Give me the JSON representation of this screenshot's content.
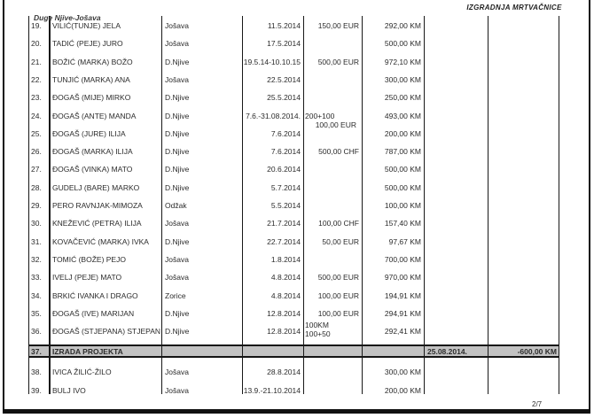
{
  "header": {
    "title": "IZGRADNJA MRTVAČNICE"
  },
  "overlay_note": "Duge Njive-Jošava",
  "footer": {
    "page": "2/7"
  },
  "colors": {
    "row_highlight": "#c2c2c2",
    "ink": "#2b2b2b",
    "border": "#141414"
  },
  "table": {
    "rows": [
      {
        "no": "19.",
        "name": "VILIĆ(TUNJE) JELA",
        "place": "Jošava",
        "date": "11.5.2014",
        "foreign": "150,00 EUR",
        "km": "292,00 KM",
        "col7": "",
        "col8": ""
      },
      {
        "no": "20.",
        "name": "TADIĆ (PEJE) JURO",
        "place": "Jošava",
        "date": "17.5.2014",
        "foreign": "",
        "km": "500,00 KM",
        "col7": "",
        "col8": ""
      },
      {
        "no": "21.",
        "name": "BOŽIĆ (MARKA) BOŽO",
        "place": "D.Njive",
        "date": "19.5.14-10.10.15",
        "foreign": "500,00 EUR",
        "km": "972,10 KM",
        "col7": "",
        "col8": ""
      },
      {
        "no": "22.",
        "name": "TUNJIĆ (MARKA) ANA",
        "place": "Jošava",
        "date": "22.5.2014",
        "foreign": "",
        "km": "300,00 KM",
        "col7": "",
        "col8": ""
      },
      {
        "no": "23.",
        "name": "ĐOGAŠ (MIJE) MIRKO",
        "place": "D.Njive",
        "date": "25.5.2014",
        "foreign": "",
        "km": "250,00 KM",
        "col7": "",
        "col8": ""
      },
      {
        "no": "24.",
        "name": "ĐOGAŠ (ANTE) MANDA",
        "place": "D.Njive",
        "date": "7.6.-31.08.2014.",
        "foreign_lines": [
          {
            "text": "200+100",
            "align": "left"
          },
          {
            "text": "100,00 EUR",
            "align": "right"
          }
        ],
        "km": "493,00 KM",
        "col7": "",
        "col8": ""
      },
      {
        "no": "25.",
        "name": "ĐOGAŠ (JURE) ILIJA",
        "place": "D.Njive",
        "date": "7.6.2014",
        "foreign": "",
        "km": "200,00 KM",
        "col7": "",
        "col8": ""
      },
      {
        "no": "26.",
        "name": "ĐOGAŠ (MARKA) ILIJA",
        "place": "D.Njive",
        "date": "7.6.2014",
        "foreign": "500,00 CHF",
        "km": "787,00 KM",
        "col7": "",
        "col8": ""
      },
      {
        "no": "27.",
        "name": "ĐOGAŠ (VINKA) MATO",
        "place": "D.Njive",
        "date": "20.6.2014",
        "foreign": "",
        "km": "500,00 KM",
        "col7": "",
        "col8": ""
      },
      {
        "no": "28.",
        "name": "GUDELJ (BARE) MARKO",
        "place": "D.Njive",
        "date": "5.7.2014",
        "foreign": "",
        "km": "500,00 KM",
        "col7": "",
        "col8": ""
      },
      {
        "no": "29.",
        "name": "PERO RAVNJAK-MIMOZA",
        "place": "Odžak",
        "date": "5.5.2014",
        "foreign": "",
        "km": "100,00 KM",
        "col7": "",
        "col8": ""
      },
      {
        "no": "30.",
        "name": "KNEŽEVIĆ (PETRA) ILIJA",
        "place": "Jošava",
        "date": "21.7.2014",
        "foreign": "100,00 CHF",
        "km": "157,40 KM",
        "col7": "",
        "col8": ""
      },
      {
        "no": "31.",
        "name": "KOVAČEVIĆ (MARKA) IVKA",
        "place": "D.Njive",
        "date": "22.7.2014",
        "foreign": "50,00 EUR",
        "km": "97,67 KM",
        "col7": "",
        "col8": ""
      },
      {
        "no": "32.",
        "name": "TOMIĆ (BOŽE) PEJO",
        "place": "Jošava",
        "date": "1.8.2014",
        "foreign": "",
        "km": "700,00 KM",
        "col7": "",
        "col8": ""
      },
      {
        "no": "33.",
        "name": "IVELJ (PEJE) MATO",
        "place": "Jošava",
        "date": "4.8.2014",
        "foreign": "500,00 EUR",
        "km": "970,00 KM",
        "col7": "",
        "col8": ""
      },
      {
        "no": "34.",
        "name": "BRKIĆ IVANKA I DRAGO",
        "place": "Zorice",
        "date": "4.8.2014",
        "foreign": "100,00 EUR",
        "km": "194,91 KM",
        "col7": "",
        "col8": ""
      },
      {
        "no": "35.",
        "name": "ĐOGAŠ (IVE) MARIJAN",
        "place": "D.Njive",
        "date": "12.8.2014",
        "foreign": "100,00 EUR",
        "km": "294,91 KM",
        "col7": "",
        "col8": ""
      },
      {
        "no": "36.",
        "name": "ĐOGAŠ (STJEPANA) STJEPAN",
        "place": "D.Njive",
        "date": "12.8.2014",
        "foreign_lines": [
          {
            "text": "100KM",
            "align": "left"
          },
          {
            "text": "100+50",
            "align": "left"
          }
        ],
        "km": "292,41 KM",
        "col7": "",
        "col8": ""
      },
      {
        "no": "37.",
        "name": "IZRADA PROJEKTA",
        "place": "",
        "date": "",
        "foreign": "",
        "km": "",
        "col7": "25.08.2014.",
        "col8": "-600,00 KM",
        "highlight": true
      },
      {
        "no": "38.",
        "name": "IVICA ŽILIĆ-ŽILO",
        "place": "Jošava",
        "date": "28.8.2014",
        "foreign": "",
        "km": "300,00 KM",
        "col7": "",
        "col8": ""
      },
      {
        "no": "39.",
        "name": "BULJ  IVO",
        "place": "Jošava",
        "date": "13.9.-21.10.2014",
        "foreign": "",
        "km": "200,00 KM",
        "col7": "",
        "col8": ""
      }
    ]
  }
}
